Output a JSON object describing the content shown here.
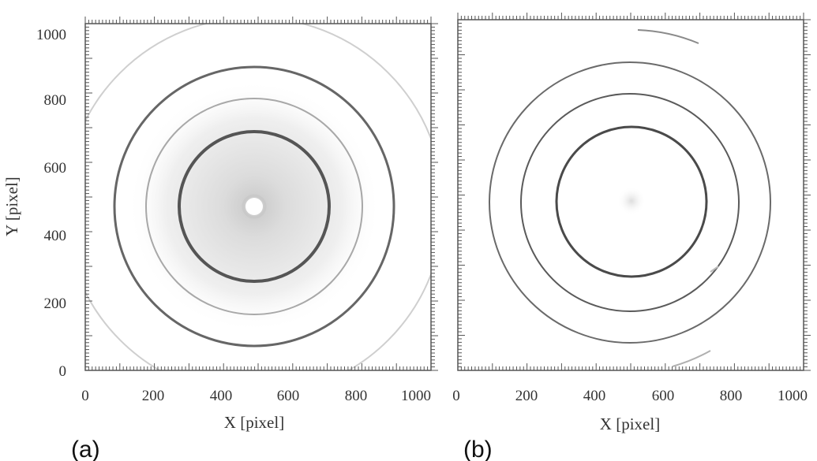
{
  "figure": {
    "panels": [
      {
        "label": "(a)",
        "x_axis_title": "X [pixel]",
        "y_axis_title": "Y [pixel]",
        "x_ticks": [
          "0",
          "200",
          "400",
          "600",
          "800",
          "1000"
        ],
        "y_ticks": [
          "0",
          "200",
          "400",
          "600",
          "800",
          "1000"
        ]
      },
      {
        "label": "(b)",
        "x_axis_title": "X [pixel]",
        "x_ticks": [
          "0",
          "200",
          "400",
          "600",
          "800",
          "1000"
        ]
      }
    ],
    "colors": {
      "ring_dark": "#555555",
      "ring_light": "#999999",
      "background": "#ffffff",
      "frame": "#555555"
    }
  }
}
